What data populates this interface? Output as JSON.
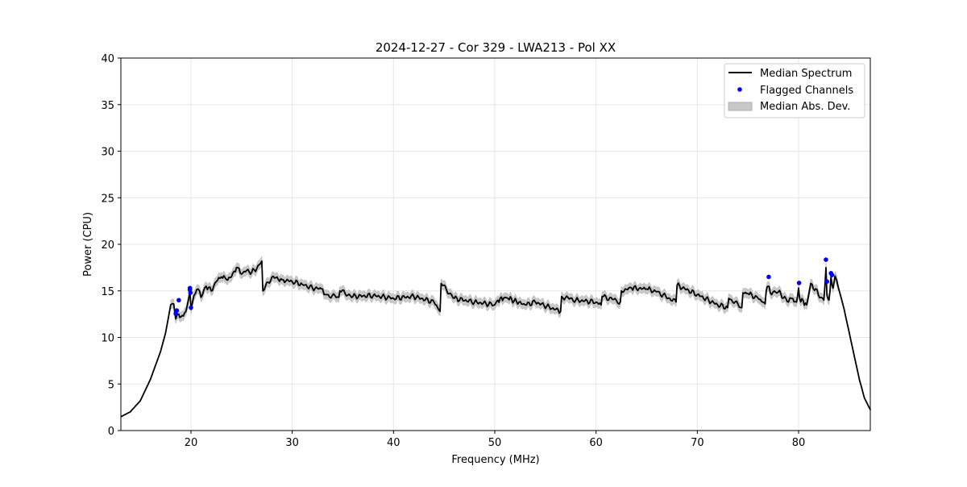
{
  "chart_data": {
    "type": "line",
    "title": "2024-12-27 - Cor 329 - LWA213 - Pol XX",
    "xlabel": "Frequency (MHz)",
    "ylabel": "Power (CPU)",
    "xlim": [
      13.08,
      87.08
    ],
    "ylim": [
      0,
      40
    ],
    "xticks": [
      20,
      30,
      40,
      50,
      60,
      70,
      80
    ],
    "yticks": [
      0,
      5,
      10,
      15,
      20,
      25,
      30,
      35,
      40
    ],
    "grid": true,
    "legend_position": "top-right",
    "legend": [
      "Median Spectrum",
      "Flagged Channels",
      "Median Abs. Dev."
    ],
    "colors": {
      "line": "#000000",
      "flagged": "#0000ff",
      "band": "#c8c8c8"
    },
    "median_spectrum": {
      "x": [
        13.1,
        14,
        15,
        16,
        17,
        17.5,
        18,
        18.3,
        18.5,
        18.8,
        19,
        19.5,
        19.9,
        20,
        20.3,
        20.7,
        21,
        21.5,
        22,
        22.5,
        23,
        23.5,
        24,
        24.5,
        25,
        25.5,
        26,
        26.5,
        27,
        27.1,
        28,
        29,
        30,
        31,
        32,
        33,
        33.3,
        34.6,
        34.7,
        36,
        38,
        40,
        42,
        44,
        44.6,
        44.7,
        46,
        48,
        50,
        50.3,
        51,
        51.3,
        53,
        54,
        56,
        56.5,
        56.6,
        58,
        60,
        60.5,
        60.6,
        62,
        62.4,
        62.5,
        63.5,
        65,
        66,
        67.9,
        68,
        70,
        72,
        73,
        73.1,
        74.4,
        74.5,
        75,
        76,
        76.7,
        76.8,
        77,
        77.2,
        78,
        79,
        79.3,
        79.8,
        80,
        80.1,
        80.8,
        81.2,
        82.2,
        82.5,
        82.7,
        82.8,
        83,
        83.2,
        83.4,
        83.6,
        83.9,
        84.5,
        85,
        85.5,
        86,
        86.5,
        87.1
      ],
      "y": [
        1.5,
        2.0,
        3.2,
        5.5,
        8.5,
        10.5,
        13.5,
        13.6,
        12.0,
        12.5,
        12.2,
        12.8,
        15.0,
        13.0,
        14.5,
        15.2,
        14.3,
        15.5,
        15.0,
        16.0,
        16.5,
        16.2,
        16.5,
        17.5,
        16.8,
        17.2,
        17.0,
        17.4,
        18.2,
        15.0,
        16.5,
        16.2,
        16.0,
        15.7,
        15.3,
        15.2,
        14.6,
        14.3,
        15.0,
        14.4,
        14.5,
        14.2,
        14.4,
        13.8,
        12.8,
        15.8,
        14.2,
        13.8,
        13.5,
        14.0,
        14.3,
        14.2,
        13.5,
        13.8,
        13.0,
        12.8,
        14.4,
        14.0,
        13.8,
        13.5,
        14.4,
        14.0,
        13.8,
        15.0,
        15.3,
        15.2,
        14.9,
        13.8,
        15.6,
        14.6,
        13.5,
        13.2,
        14.2,
        13.2,
        14.8,
        14.7,
        14.2,
        13.6,
        15.0,
        15.5,
        14.8,
        14.9,
        13.8,
        14.2,
        13.8,
        15.3,
        14.2,
        13.5,
        15.8,
        14.3,
        14.0,
        17.5,
        14.5,
        14.0,
        16.5,
        15.3,
        16.6,
        15.5,
        13.0,
        10.5,
        8.0,
        5.5,
        3.5,
        2.2
      ]
    },
    "median_abs_dev": {
      "halfwidth": 0.5,
      "x_range": [
        18,
        84
      ]
    },
    "flagged_channels": {
      "x": [
        18.5,
        18.6,
        18.8,
        19.9,
        19.9,
        19.95,
        20.0,
        77.05,
        80.05,
        82.7,
        82.8,
        83.2,
        83.3
      ],
      "y": [
        12.55,
        12.9,
        14.0,
        15.3,
        15.1,
        14.8,
        13.2,
        16.5,
        15.85,
        18.35,
        16.0,
        16.9,
        16.7
      ]
    }
  }
}
